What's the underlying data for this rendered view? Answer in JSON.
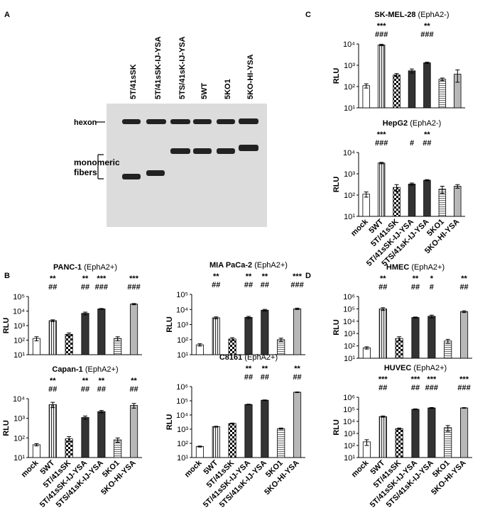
{
  "panel_labels": [
    "A",
    "B",
    "C",
    "D"
  ],
  "blot": {
    "lanes": [
      "5T/41sSK",
      "5T/41sSK-IJ-YSA",
      "5TS/41sK-IJ-YSA",
      "5WT",
      "5KO1",
      "5KO-HI-YSA"
    ],
    "bands": [
      "hexon",
      "monomeric fibers"
    ]
  },
  "bar_styles": [
    "white",
    "vstripe",
    "checker",
    "dark",
    "dark",
    "hstripe",
    "gray"
  ],
  "chart_data": [
    {
      "type": "bar",
      "title": "SK-MEL-28",
      "subtitle": "(EphA2-)",
      "y_label": "RLU",
      "log_scale": true,
      "values": [
        110,
        9000,
        350,
        550,
        1300,
        220,
        380
      ],
      "errors": [
        25,
        700,
        60,
        120,
        100,
        30,
        220
      ],
      "stars": [
        null,
        "***",
        null,
        null,
        "**",
        null,
        null
      ],
      "hashes": [
        null,
        "###",
        null,
        null,
        "###",
        null,
        null
      ],
      "ylim": [
        10,
        10000
      ],
      "yticks": [
        {
          "value": 10,
          "label": "10¹"
        },
        {
          "value": 100,
          "label": "10²"
        },
        {
          "value": 1000,
          "label": "10³"
        },
        {
          "value": 10000,
          "label": "10⁴"
        }
      ]
    },
    {
      "type": "bar",
      "title": "HepG2",
      "subtitle": "(EphA2-)",
      "y_label": "RLU",
      "log_scale": true,
      "categories": [
        "mock",
        "5WT",
        "5T/41sSK",
        "5T/41sSK-IJ-YSA",
        "5TS/41sK-IJ-YSA",
        "5KO1",
        "5KO-HI-YSA"
      ],
      "values": [
        110,
        3200,
        230,
        330,
        500,
        190,
        260
      ],
      "errors": [
        30,
        250,
        80,
        40,
        30,
        70,
        50
      ],
      "stars": [
        null,
        "***",
        null,
        null,
        "**",
        null,
        null
      ],
      "hashes": [
        null,
        "###",
        null,
        "#",
        "##",
        null,
        null
      ],
      "ylim": [
        10,
        10000
      ],
      "yticks": [
        {
          "value": 10,
          "label": "10¹"
        },
        {
          "value": 100,
          "label": "10²"
        },
        {
          "value": 1000,
          "label": "10³"
        },
        {
          "value": 10000,
          "label": "10⁴"
        }
      ]
    },
    {
      "type": "bar",
      "title": "PANC-1",
      "subtitle": "(EphA2+)",
      "y_label": "RLU",
      "log_scale": true,
      "values": [
        130,
        2200,
        250,
        7000,
        14000,
        130,
        30000
      ],
      "errors": [
        40,
        300,
        60,
        1500,
        1000,
        40,
        3000
      ],
      "stars": [
        null,
        "**",
        null,
        "**",
        "***",
        null,
        "***"
      ],
      "hashes": [
        null,
        "##",
        null,
        "##",
        "###",
        null,
        "###"
      ],
      "ylim": [
        10,
        100000
      ],
      "yticks": [
        {
          "value": 10,
          "label": "10¹"
        },
        {
          "value": 100,
          "label": "10²"
        },
        {
          "value": 1000,
          "label": "10³"
        },
        {
          "value": 10000,
          "label": "10⁴"
        },
        {
          "value": 100000,
          "label": "10⁵"
        }
      ]
    },
    {
      "type": "bar",
      "title": "MIA PaCa-2",
      "subtitle": "(EphA2+)",
      "y_label": "RLU",
      "log_scale": true,
      "values": [
        45,
        2800,
        110,
        3000,
        9000,
        100,
        11000
      ],
      "errors": [
        8,
        400,
        25,
        500,
        1200,
        25,
        1200
      ],
      "stars": [
        null,
        "**",
        null,
        "**",
        "**",
        null,
        "***"
      ],
      "hashes": [
        null,
        "##",
        null,
        "##",
        "##",
        null,
        "###"
      ],
      "ylim": [
        10,
        100000
      ],
      "yticks": [
        {
          "value": 10,
          "label": "10¹"
        },
        {
          "value": 100,
          "label": "10²"
        },
        {
          "value": 1000,
          "label": "10³"
        },
        {
          "value": 10000,
          "label": "10⁴"
        },
        {
          "value": 100000,
          "label": "10⁵"
        }
      ]
    },
    {
      "type": "bar",
      "title": "Capan-1",
      "subtitle": "(EphA2+)",
      "y_label": "RLU",
      "log_scale": true,
      "categories": [
        "mock",
        "5WT",
        "5T/41sSK",
        "5T/41sSK-IJ-YSA",
        "5TS/41sK-IJ-YSA",
        "5KO1",
        "5KO-HI-YSA"
      ],
      "values": [
        45,
        5000,
        90,
        1100,
        2200,
        80,
        4500
      ],
      "errors": [
        6,
        1500,
        25,
        200,
        300,
        20,
        1200
      ],
      "stars": [
        null,
        "**",
        null,
        "**",
        "**",
        null,
        "**"
      ],
      "hashes": [
        null,
        "##",
        null,
        "##",
        "##",
        null,
        "##"
      ],
      "ylim": [
        10,
        10000
      ],
      "yticks": [
        {
          "value": 10,
          "label": "10¹"
        },
        {
          "value": 100,
          "label": "10²"
        },
        {
          "value": 1000,
          "label": "10³"
        },
        {
          "value": 10000,
          "label": "10⁴"
        }
      ]
    },
    {
      "type": "bar",
      "title": "C8161",
      "subtitle": "(EphA2+)",
      "y_label": "RLU",
      "log_scale": true,
      "categories": [
        "mock",
        "5WT",
        "5T/41sSK",
        "5T/41sSK-IJ-YSA",
        "5TS/41sK-IJ-YSA",
        "5KO1",
        "5KO-HI-YSA"
      ],
      "values": [
        60,
        1500,
        2500,
        55000,
        110000,
        1100,
        400000
      ],
      "errors": [
        5,
        100,
        200,
        3000,
        5000,
        100,
        20000
      ],
      "stars": [
        null,
        null,
        null,
        "**",
        "**",
        null,
        "**"
      ],
      "hashes": [
        null,
        null,
        null,
        "##",
        "##",
        null,
        "##"
      ],
      "ylim": [
        10,
        1000000
      ],
      "yticks": [
        {
          "value": 10,
          "label": "10¹"
        },
        {
          "value": 100,
          "label": "10²"
        },
        {
          "value": 1000,
          "label": "10³"
        },
        {
          "value": 10000,
          "label": "10⁴"
        },
        {
          "value": 100000,
          "label": "10⁵"
        },
        {
          "value": 1000000,
          "label": "10⁶"
        }
      ]
    },
    {
      "type": "bar",
      "title": "HMEC",
      "subtitle": "(EphA2+)",
      "y_label": "RLU",
      "log_scale": true,
      "values": [
        70,
        100000,
        400,
        20000,
        25000,
        250,
        60000
      ],
      "errors": [
        15,
        25000,
        150,
        2000,
        6000,
        90,
        10000
      ],
      "stars": [
        null,
        "**",
        null,
        "**",
        "*",
        null,
        "**"
      ],
      "hashes": [
        null,
        "##",
        null,
        "##",
        "#",
        null,
        "##"
      ],
      "ylim": [
        10,
        1000000
      ],
      "yticks": [
        {
          "value": 10,
          "label": "10¹"
        },
        {
          "value": 100,
          "label": "10²"
        },
        {
          "value": 1000,
          "label": "10³"
        },
        {
          "value": 10000,
          "label": "10⁴"
        },
        {
          "value": 100000,
          "label": "10⁵"
        },
        {
          "value": 1000000,
          "label": "10⁶"
        }
      ]
    },
    {
      "type": "bar",
      "title": "HUVEC",
      "subtitle": "(EphA2+)",
      "y_label": "RLU",
      "log_scale": true,
      "categories": [
        "mock",
        "5WT",
        "5T/41sSK",
        "5T/41sSK-IJ-YSA",
        "5TS/41sK-IJ-YSA",
        "5KO1",
        "5KO-HI-YSA"
      ],
      "values": [
        200,
        25000,
        2500,
        100000,
        130000,
        3000,
        130000
      ],
      "errors": [
        100,
        3000,
        300,
        8000,
        10000,
        1500,
        8000
      ],
      "stars": [
        null,
        "***",
        null,
        "***",
        "***",
        null,
        "***"
      ],
      "hashes": [
        null,
        "##",
        null,
        "##",
        "###",
        null,
        "###"
      ],
      "ylim": [
        10,
        1000000
      ],
      "yticks": [
        {
          "value": 10,
          "label": "10¹"
        },
        {
          "value": 100,
          "label": "10²"
        },
        {
          "value": 1000,
          "label": "10³"
        },
        {
          "value": 10000,
          "label": "10⁴"
        },
        {
          "value": 100000,
          "label": "10⁵"
        },
        {
          "value": 1000000,
          "label": "10⁶"
        }
      ]
    }
  ]
}
